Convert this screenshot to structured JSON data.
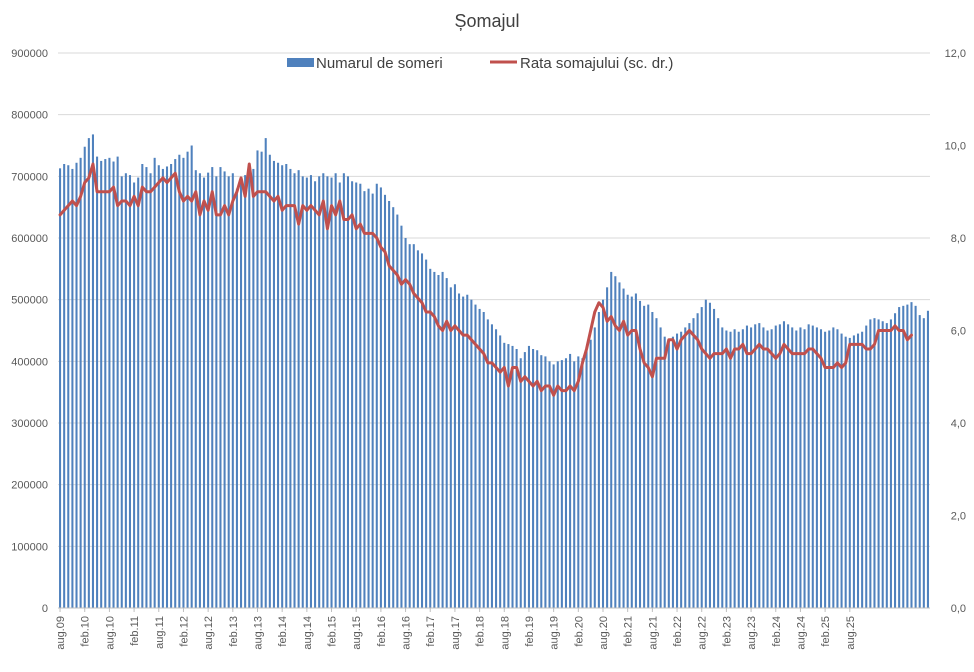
{
  "chart_data": {
    "title": "Șomajul",
    "type": "bar+line",
    "legend_position": "top",
    "grid": true,
    "colors": {
      "bars": "#4f81bd",
      "line": "#c0504d",
      "grid": "#d9d9d9",
      "text": "#595959"
    },
    "x": {
      "start": "aug.09",
      "end": "aug.25",
      "frequency": "monthly",
      "tick_labels": [
        "aug.09",
        "feb.10",
        "aug.10",
        "feb.11",
        "aug.11",
        "feb.12",
        "aug.12",
        "feb.13",
        "aug.13",
        "feb.14",
        "aug.14",
        "feb.15",
        "aug.15",
        "feb.16",
        "aug.16",
        "feb.17",
        "aug.17",
        "feb.18",
        "aug.18",
        "feb.19",
        "aug.19",
        "feb.20",
        "aug.20",
        "feb.21",
        "aug.21",
        "feb.22",
        "aug.22",
        "feb.23",
        "aug.23",
        "feb.24",
        "aug.24",
        "feb.25",
        "aug.25"
      ]
    },
    "y_left": {
      "min": 0,
      "max": 900000,
      "ticks": [
        "0",
        "100000",
        "200000",
        "300000",
        "400000",
        "500000",
        "600000",
        "700000",
        "800000",
        "900000"
      ]
    },
    "y_right": {
      "min": 0,
      "max": 12,
      "ticks": [
        "0,0",
        "2,0",
        "4,0",
        "6,0",
        "8,0",
        "10,0",
        "12,0"
      ]
    },
    "series": [
      {
        "name": "Numarul de someri",
        "type": "bar",
        "axis": "left",
        "values": [
          713000,
          720000,
          718000,
          712000,
          722000,
          730000,
          748000,
          762000,
          768000,
          732000,
          725000,
          728000,
          730000,
          724000,
          732000,
          700000,
          705000,
          702000,
          690000,
          698000,
          720000,
          715000,
          705000,
          730000,
          718000,
          712000,
          716000,
          720000,
          728000,
          735000,
          730000,
          740000,
          750000,
          710000,
          705000,
          698000,
          706000,
          715000,
          700000,
          715000,
          708000,
          700000,
          705000,
          680000,
          690000,
          702000,
          700000,
          712000,
          742000,
          740000,
          762000,
          735000,
          725000,
          722000,
          718000,
          720000,
          712000,
          705000,
          710000,
          700000,
          698000,
          702000,
          692000,
          700000,
          705000,
          700000,
          698000,
          705000,
          690000,
          705000,
          700000,
          692000,
          690000,
          688000,
          676000,
          680000,
          672000,
          688000,
          682000,
          670000,
          660000,
          650000,
          638000,
          620000,
          600000,
          590000,
          590000,
          580000,
          575000,
          565000,
          550000,
          545000,
          540000,
          545000,
          535000,
          520000,
          525000,
          510000,
          505000,
          508000,
          500000,
          492000,
          485000,
          480000,
          468000,
          460000,
          452000,
          442000,
          430000,
          428000,
          425000,
          420000,
          405000,
          415000,
          425000,
          420000,
          418000,
          410000,
          408000,
          400000,
          395000,
          400000,
          402000,
          405000,
          412000,
          400000,
          408000,
          405000,
          420000,
          435000,
          455000,
          480000,
          500000,
          520000,
          545000,
          538000,
          528000,
          518000,
          508000,
          505000,
          510000,
          498000,
          490000,
          492000,
          480000,
          470000,
          455000,
          440000,
          435000,
          440000,
          445000,
          448000,
          455000,
          462000,
          470000,
          478000,
          488000,
          500000,
          495000,
          485000,
          470000,
          455000,
          450000,
          448000,
          452000,
          448000,
          452000,
          458000,
          455000,
          460000,
          462000,
          455000,
          450000,
          452000,
          458000,
          460000,
          465000,
          460000,
          455000,
          450000,
          455000,
          452000,
          460000,
          458000,
          455000,
          452000,
          448000,
          450000,
          455000,
          452000,
          445000,
          440000,
          438000,
          442000,
          445000,
          448000,
          458000,
          468000,
          470000,
          468000,
          465000,
          462000,
          468000,
          478000,
          488000,
          490000,
          492000,
          496000,
          490000,
          475000,
          470000,
          482000
        ]
      },
      {
        "name": "Rata somajului (sc. dr.)",
        "type": "line",
        "axis": "right",
        "values": [
          8.5,
          8.6,
          8.7,
          8.8,
          8.7,
          8.9,
          9.2,
          9.3,
          9.6,
          9.0,
          9.0,
          9.0,
          9.0,
          9.1,
          8.7,
          8.8,
          8.8,
          8.7,
          8.9,
          8.7,
          9.1,
          9.0,
          9.0,
          9.1,
          9.2,
          9.3,
          9.2,
          9.3,
          9.4,
          9.0,
          8.8,
          8.9,
          8.8,
          9.0,
          8.5,
          8.8,
          8.6,
          9.0,
          8.5,
          8.5,
          8.7,
          8.5,
          8.8,
          9.0,
          9.3,
          8.9,
          9.6,
          8.9,
          9.0,
          9.0,
          9.0,
          8.9,
          8.8,
          8.9,
          8.6,
          8.7,
          8.7,
          8.7,
          8.3,
          8.7,
          8.6,
          8.7,
          8.6,
          8.5,
          8.8,
          8.2,
          8.7,
          8.5,
          8.8,
          8.4,
          8.4,
          8.5,
          8.2,
          8.3,
          8.1,
          8.1,
          8.1,
          8.0,
          7.8,
          7.7,
          7.4,
          7.3,
          7.2,
          7.0,
          7.1,
          7.0,
          6.8,
          6.7,
          6.6,
          6.4,
          6.4,
          6.3,
          6.1,
          6.0,
          6.2,
          6.0,
          6.1,
          6.0,
          5.9,
          5.9,
          5.8,
          5.7,
          5.6,
          5.5,
          5.3,
          5.3,
          5.2,
          5.1,
          5.2,
          4.8,
          5.2,
          5.2,
          4.9,
          5.0,
          4.9,
          4.8,
          4.9,
          4.7,
          4.8,
          4.8,
          4.6,
          4.8,
          4.7,
          4.7,
          4.8,
          4.7,
          4.9,
          5.3,
          5.6,
          6.0,
          6.4,
          6.6,
          6.5,
          6.2,
          6.3,
          6.1,
          6.0,
          6.2,
          5.9,
          6.0,
          6.0,
          5.6,
          5.3,
          5.2,
          5.0,
          5.4,
          5.4,
          5.4,
          5.8,
          5.8,
          5.6,
          5.8,
          5.9,
          6.0,
          5.9,
          5.8,
          5.6,
          5.5,
          5.4,
          5.5,
          5.5,
          5.5,
          5.6,
          5.4,
          5.6,
          5.6,
          5.7,
          5.5,
          5.5,
          5.6,
          5.7,
          5.6,
          5.6,
          5.5,
          5.4,
          5.5,
          5.7,
          5.6,
          5.5,
          5.5,
          5.5,
          5.5,
          5.6,
          5.6,
          5.5,
          5.4,
          5.2,
          5.2,
          5.2,
          5.3,
          5.2,
          5.3,
          5.7,
          5.7,
          5.7,
          5.7,
          5.6,
          5.6,
          5.7,
          6.0,
          6.0,
          6.0,
          6.0,
          6.1,
          6.0,
          6.0,
          5.8,
          5.9
        ]
      }
    ]
  }
}
